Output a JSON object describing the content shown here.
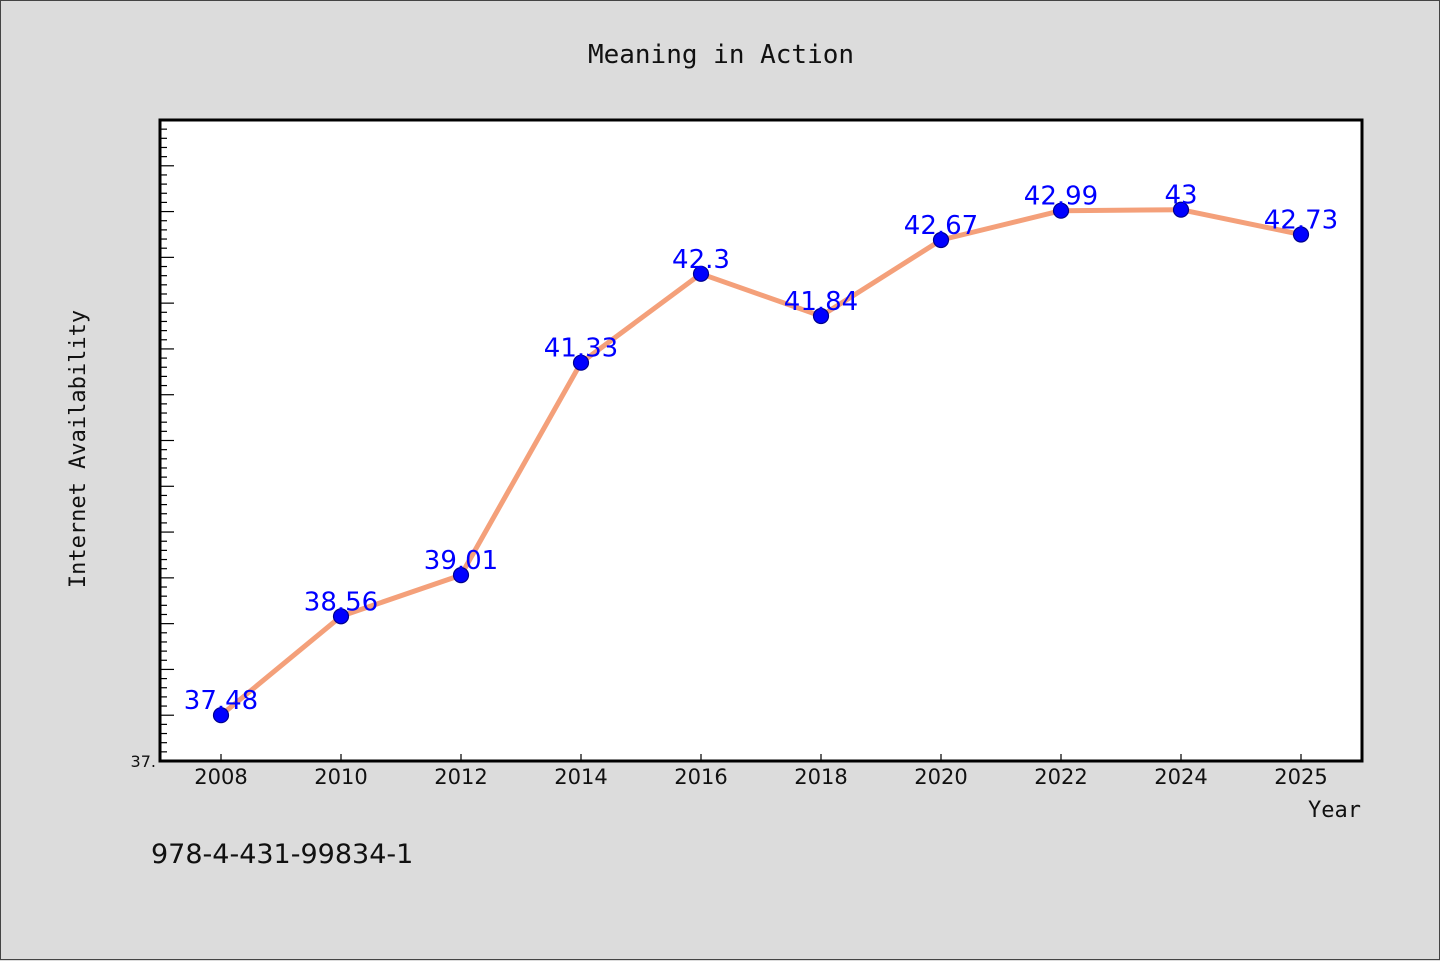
{
  "chart_data": {
    "type": "line",
    "title": "Meaning in Action",
    "xlabel": "Year",
    "ylabel": "Internet Availability",
    "categories": [
      "2008",
      "2010",
      "2012",
      "2014",
      "2016",
      "2018",
      "2020",
      "2022",
      "2024",
      "2025"
    ],
    "values": [
      37.48,
      38.56,
      39.01,
      41.33,
      42.3,
      41.84,
      42.67,
      42.99,
      43,
      42.73
    ],
    "data_labels": [
      "37.48",
      "38.56",
      "39.01",
      "41.33",
      "42.3",
      "41.84",
      "42.67",
      "42.99",
      "43",
      "42.73"
    ],
    "ylim": [
      36.98,
      43.98
    ],
    "ytick_label": "37.",
    "grid": false,
    "line_color": "#f4a07a",
    "marker_color": "#0000ff",
    "label_color": "#0000ff"
  },
  "footer": {
    "identifier": "978-4-431-99834-1"
  }
}
